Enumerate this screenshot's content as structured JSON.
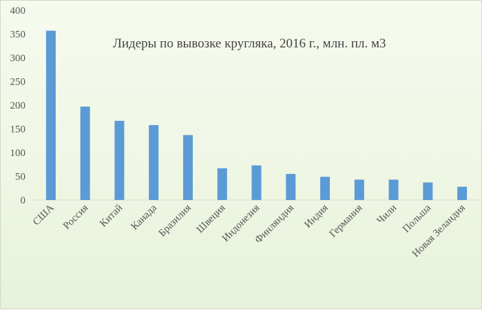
{
  "chart_data": {
    "type": "bar",
    "title": "Лидеры по вывозке кругляка, 2016 г., млн. пл. м3",
    "categories": [
      "США",
      "Россия",
      "Китай",
      "Канада",
      "Бразилия",
      "Швеция",
      "Индонезия",
      "Финляндия",
      "Индия",
      "Германия",
      "Чили",
      "Польша",
      "Новая Зеландия"
    ],
    "values": [
      357,
      197,
      167,
      158,
      137,
      67,
      73,
      55,
      49,
      43,
      43,
      37,
      28
    ],
    "xlabel": "",
    "ylabel": "",
    "ylim": [
      0,
      400
    ],
    "yticks": [
      0,
      50,
      100,
      150,
      200,
      250,
      300,
      350,
      400
    ],
    "grid": false,
    "legend": "none",
    "bar_color": "#5b9bd5"
  }
}
